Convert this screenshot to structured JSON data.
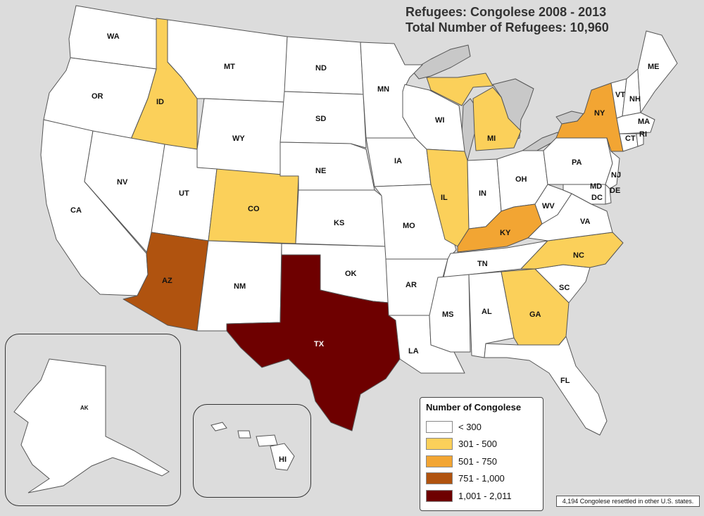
{
  "title": {
    "line1": "Refugees:  Congolese 2008 - 2013",
    "line2": "Total Number of Refugees: 10,960"
  },
  "legend": {
    "heading": "Number of Congolese",
    "classes": [
      {
        "label": "< 300",
        "color": "#ffffff"
      },
      {
        "label": "301 - 500",
        "color": "#fbd05a"
      },
      {
        "label": "501 - 750",
        "color": "#f2a533"
      },
      {
        "label": "751 - 1,000",
        "color": "#b0530f"
      },
      {
        "label": "1,001 - 2,011",
        "color": "#6e0000"
      }
    ]
  },
  "note": "4,194 Congolese resettled in other U.S. states.",
  "colors": {
    "background": "#dcdcdc",
    "lakes": "#c8c8c8",
    "border": "#555555"
  },
  "states": {
    "WA": "WA",
    "OR": "OR",
    "CA": "CA",
    "ID": "ID",
    "NV": "NV",
    "MT": "MT",
    "WY": "WY",
    "UT": "UT",
    "AZ": "AZ",
    "CO": "CO",
    "NM": "NM",
    "ND": "ND",
    "SD": "SD",
    "NE": "NE",
    "KS": "KS",
    "OK": "OK",
    "TX": "TX",
    "MN": "MN",
    "IA": "IA",
    "MO": "MO",
    "AR": "AR",
    "LA": "LA",
    "WI": "WI",
    "IL": "IL",
    "MI": "MI",
    "IN": "IN",
    "OH": "OH",
    "KY": "KY",
    "TN": "TN",
    "MS": "MS",
    "AL": "AL",
    "GA": "GA",
    "FL": "FL",
    "SC": "SC",
    "NC": "NC",
    "VA": "VA",
    "WV": "WV",
    "PA": "PA",
    "NY": "NY",
    "VT": "VT",
    "NH": "NH",
    "ME": "ME",
    "MA": "MA",
    "CT": "CT",
    "RI": "RI",
    "NJ": "NJ",
    "MD": "MD",
    "DE": "DE",
    "DC": "DC",
    "AK": "AK",
    "HI": "HI"
  }
}
